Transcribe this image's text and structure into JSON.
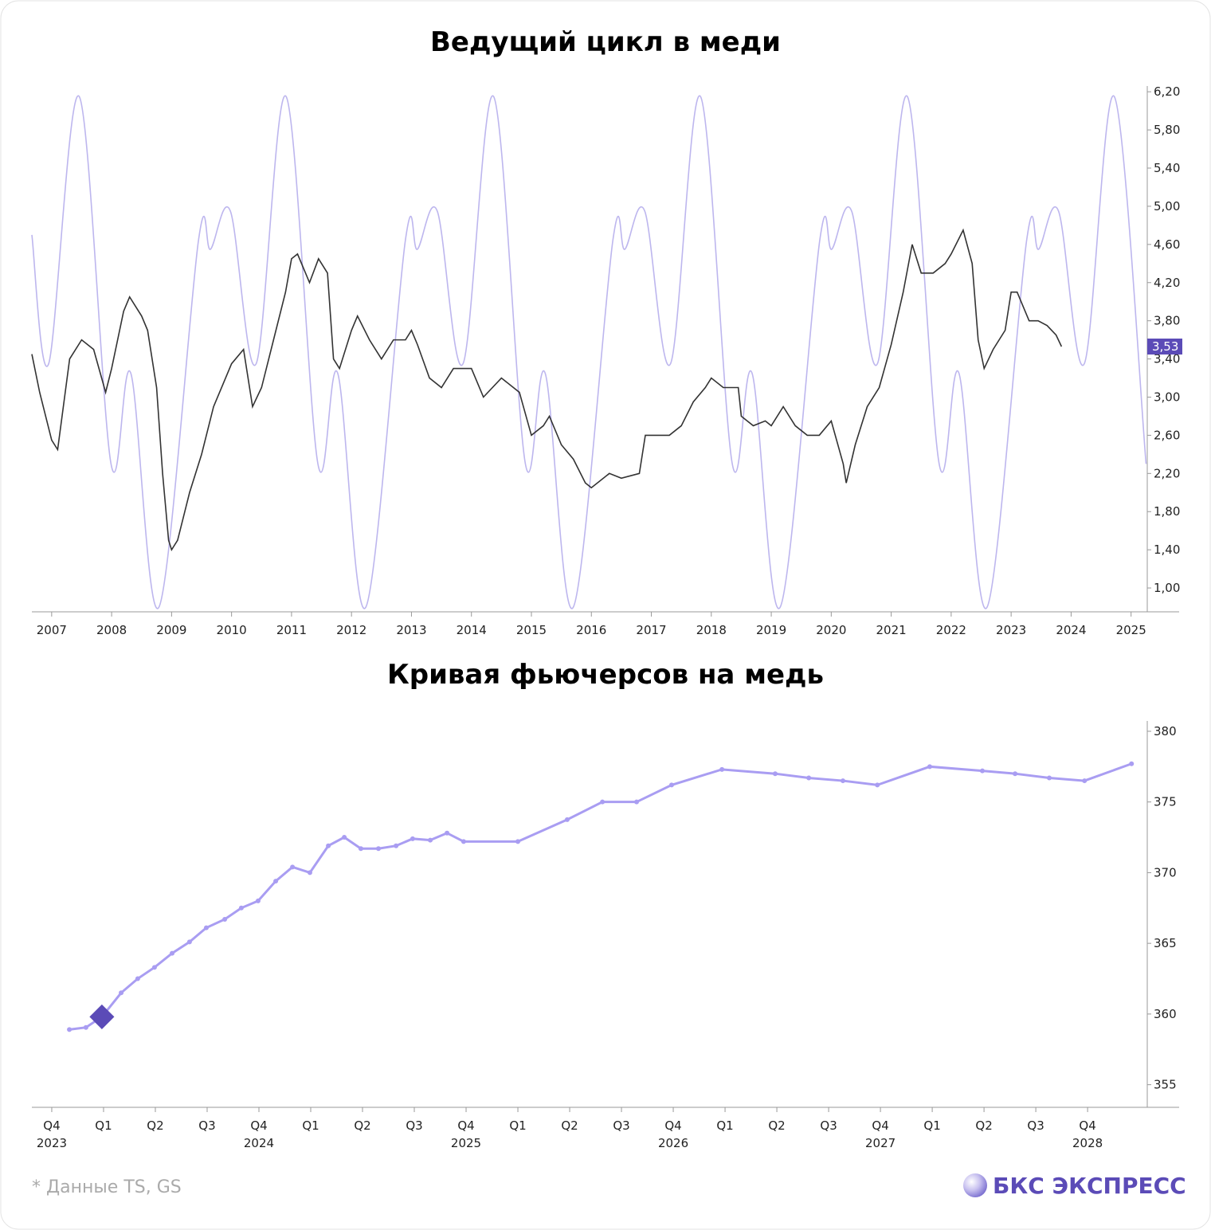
{
  "chart_data": [
    {
      "type": "line",
      "title": "Ведущий цикл в меди",
      "xlim": [
        2006.67,
        2025.27
      ],
      "xticks": [
        2007,
        2008,
        2009,
        2010,
        2011,
        2012,
        2013,
        2014,
        2015,
        2016,
        2017,
        2018,
        2019,
        2020,
        2021,
        2022,
        2023,
        2024,
        2025
      ],
      "ylim": [
        0.75,
        6.26
      ],
      "yticks": [
        {
          "value": 1.0,
          "label": "1,00"
        },
        {
          "value": 1.4,
          "label": "1,40"
        },
        {
          "value": 1.8,
          "label": "1,80"
        },
        {
          "value": 2.2,
          "label": "2,20"
        },
        {
          "value": 2.6,
          "label": "2,60"
        },
        {
          "value": 3.0,
          "label": "3,00"
        },
        {
          "value": 3.4,
          "label": "3,40"
        },
        {
          "value": 3.8,
          "label": "3,80"
        },
        {
          "value": 4.2,
          "label": "4,20"
        },
        {
          "value": 4.6,
          "label": "4,60"
        },
        {
          "value": 5.0,
          "label": "5,00"
        },
        {
          "value": 5.4,
          "label": "5,40"
        },
        {
          "value": 5.8,
          "label": "5,80"
        },
        {
          "value": 6.2,
          "label": "6,20"
        }
      ],
      "last_value": {
        "value": 3.53,
        "label": "3,53",
        "color": "#5b4bb7"
      },
      "series": [
        {
          "color": "#bdb6ee",
          "smooth": true,
          "x": [
            2006.67,
            2006.95,
            2007.46,
            2007.99,
            2008.32,
            2008.79,
            2009.45,
            2009.65,
            2009.98,
            2010.41,
            2010.91,
            2011.44,
            2011.77,
            2012.24,
            2012.9,
            2013.1,
            2013.43,
            2013.86,
            2014.37,
            2014.9,
            2015.23,
            2015.7,
            2016.36,
            2016.56,
            2016.89,
            2017.32,
            2017.82,
            2018.35,
            2018.68,
            2019.15,
            2019.81,
            2020.01,
            2020.34,
            2020.77,
            2021.27,
            2021.8,
            2022.13,
            2022.6,
            2023.26,
            2023.46,
            2023.79,
            2024.22,
            2024.72,
            2025.25
          ],
          "values": [
            4.7,
            3.35,
            6.15,
            2.3,
            3.25,
            0.8,
            4.65,
            4.55,
            4.95,
            3.35,
            6.15,
            2.3,
            3.25,
            0.8,
            4.65,
            4.55,
            4.95,
            3.35,
            6.15,
            2.3,
            3.25,
            0.8,
            4.65,
            4.55,
            4.95,
            3.35,
            6.15,
            2.3,
            3.25,
            0.8,
            4.65,
            4.55,
            4.95,
            3.35,
            6.15,
            2.3,
            3.25,
            0.8,
            4.65,
            4.55,
            4.95,
            3.35,
            6.15,
            2.3
          ]
        },
        {
          "color": "#333333",
          "smooth": false,
          "x": [
            2006.67,
            2006.8,
            2007.0,
            2007.1,
            2007.3,
            2007.5,
            2007.7,
            2007.9,
            2008.0,
            2008.2,
            2008.3,
            2008.5,
            2008.6,
            2008.75,
            2008.85,
            2008.95,
            2009.0,
            2009.1,
            2009.3,
            2009.5,
            2009.7,
            2009.9,
            2010.0,
            2010.2,
            2010.35,
            2010.5,
            2010.7,
            2010.9,
            2011.0,
            2011.1,
            2011.3,
            2011.45,
            2011.6,
            2011.7,
            2011.8,
            2012.0,
            2012.1,
            2012.3,
            2012.5,
            2012.7,
            2012.9,
            2013.0,
            2013.1,
            2013.3,
            2013.5,
            2013.7,
            2014.0,
            2014.2,
            2014.5,
            2014.8,
            2015.0,
            2015.2,
            2015.3,
            2015.5,
            2015.7,
            2015.9,
            2016.0,
            2016.3,
            2016.5,
            2016.8,
            2016.9,
            2017.0,
            2017.3,
            2017.5,
            2017.7,
            2017.9,
            2018.0,
            2018.2,
            2018.45,
            2018.5,
            2018.7,
            2018.9,
            2019.0,
            2019.2,
            2019.4,
            2019.6,
            2019.8,
            2020.0,
            2020.2,
            2020.25,
            2020.4,
            2020.6,
            2020.8,
            2021.0,
            2021.2,
            2021.35,
            2021.5,
            2021.7,
            2021.9,
            2022.0,
            2022.2,
            2022.35,
            2022.45,
            2022.55,
            2022.7,
            2022.9,
            2023.0,
            2023.1,
            2023.3,
            2023.45,
            2023.6,
            2023.75,
            2023.84
          ],
          "values": [
            3.45,
            3.05,
            2.55,
            2.45,
            3.4,
            3.6,
            3.5,
            3.05,
            3.3,
            3.9,
            4.05,
            3.85,
            3.7,
            3.1,
            2.2,
            1.5,
            1.4,
            1.5,
            2.0,
            2.4,
            2.9,
            3.2,
            3.35,
            3.5,
            2.9,
            3.1,
            3.6,
            4.1,
            4.45,
            4.5,
            4.2,
            4.45,
            4.3,
            3.4,
            3.3,
            3.7,
            3.85,
            3.6,
            3.4,
            3.6,
            3.6,
            3.7,
            3.55,
            3.2,
            3.1,
            3.3,
            3.3,
            3.0,
            3.2,
            3.05,
            2.6,
            2.7,
            2.8,
            2.5,
            2.35,
            2.1,
            2.05,
            2.2,
            2.15,
            2.2,
            2.6,
            2.6,
            2.6,
            2.7,
            2.95,
            3.1,
            3.2,
            3.1,
            3.1,
            2.8,
            2.7,
            2.75,
            2.7,
            2.9,
            2.7,
            2.6,
            2.6,
            2.75,
            2.3,
            2.1,
            2.5,
            2.9,
            3.1,
            3.55,
            4.1,
            4.6,
            4.3,
            4.3,
            4.4,
            4.5,
            4.75,
            4.4,
            3.6,
            3.3,
            3.5,
            3.7,
            4.1,
            4.1,
            3.8,
            3.8,
            3.75,
            3.65,
            3.53
          ]
        }
      ]
    },
    {
      "type": "line",
      "title": "Кривая фьючерсов на медь",
      "xlim": [
        2023.654,
        2029.038
      ],
      "xticks": [
        {
          "value": 2023.75,
          "label": "Q4"
        },
        {
          "value": 2024.0,
          "label": "Q1"
        },
        {
          "value": 2024.25,
          "label": "Q2"
        },
        {
          "value": 2024.5,
          "label": "Q3"
        },
        {
          "value": 2024.75,
          "label": "Q4"
        },
        {
          "value": 2025.0,
          "label": "Q1"
        },
        {
          "value": 2025.25,
          "label": "Q2"
        },
        {
          "value": 2025.5,
          "label": "Q3"
        },
        {
          "value": 2025.75,
          "label": "Q4"
        },
        {
          "value": 2026.0,
          "label": "Q1"
        },
        {
          "value": 2026.25,
          "label": "Q2"
        },
        {
          "value": 2026.5,
          "label": "Q3"
        },
        {
          "value": 2026.75,
          "label": "Q4"
        },
        {
          "value": 2027.0,
          "label": "Q1"
        },
        {
          "value": 2027.25,
          "label": "Q2"
        },
        {
          "value": 2027.5,
          "label": "Q3"
        },
        {
          "value": 2027.75,
          "label": "Q4"
        },
        {
          "value": 2028.0,
          "label": "Q1"
        },
        {
          "value": 2028.25,
          "label": "Q2"
        },
        {
          "value": 2028.5,
          "label": "Q3"
        },
        {
          "value": 2028.75,
          "label": "Q4"
        }
      ],
      "year_labels": [
        {
          "value": 2023.75,
          "label": "2023"
        },
        {
          "value": 2024.75,
          "label": "2024"
        },
        {
          "value": 2025.75,
          "label": "2025"
        },
        {
          "value": 2026.75,
          "label": "2026"
        },
        {
          "value": 2027.75,
          "label": "2027"
        },
        {
          "value": 2028.75,
          "label": "2028"
        }
      ],
      "ylim": [
        353.4,
        380.73
      ],
      "yticks": [
        355,
        360,
        365,
        370,
        375,
        380
      ],
      "series": [
        {
          "color": "#a99df2",
          "smooth": false,
          "markers": true,
          "highlight_index": 2,
          "highlight_color": "#5b4bb7",
          "x": [
            2023.835,
            2023.915,
            2023.992,
            2024.085,
            2024.165,
            2024.246,
            2024.331,
            2024.415,
            2024.496,
            2024.585,
            2024.665,
            2024.746,
            2024.831,
            2024.912,
            2024.996,
            2025.085,
            2025.162,
            2025.242,
            2025.327,
            2025.412,
            2025.492,
            2025.577,
            2025.658,
            2025.738,
            2026.0,
            2026.238,
            2026.408,
            2026.573,
            2026.742,
            2026.985,
            2027.242,
            2027.404,
            2027.569,
            2027.735,
            2027.988,
            2028.242,
            2028.4,
            2028.565,
            2028.735,
            2028.962
          ],
          "values": [
            358.9,
            359.05,
            359.8,
            361.5,
            362.5,
            363.3,
            364.3,
            365.1,
            366.1,
            366.7,
            367.5,
            368.0,
            369.4,
            370.4,
            370.0,
            371.9,
            372.5,
            371.7,
            371.7,
            371.9,
            372.4,
            372.3,
            372.8,
            372.2,
            372.2,
            373.75,
            375.0,
            375.0,
            376.2,
            377.3,
            377.0,
            376.7,
            376.5,
            376.2,
            377.5,
            377.2,
            377.0,
            376.7,
            376.5,
            377.7
          ]
        }
      ]
    }
  ],
  "footer": {
    "source": "* Данные TS, GS",
    "logo": "БКС ЭКСПРЕСС"
  }
}
